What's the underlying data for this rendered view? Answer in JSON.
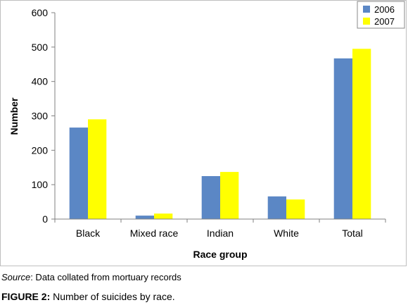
{
  "chart_data": {
    "type": "bar",
    "categories": [
      "Black",
      "Mixed race",
      "Indian",
      "White",
      "Total"
    ],
    "series": [
      {
        "name": "2006",
        "values": [
          266,
          10,
          125,
          66,
          467
        ],
        "color": "#5b87c5"
      },
      {
        "name": "2007",
        "values": [
          290,
          16,
          137,
          57,
          495
        ],
        "color": "#ffff00"
      }
    ],
    "xlabel": "Race group",
    "ylabel": "Number",
    "ylim": [
      0,
      600
    ],
    "yticks": [
      0,
      100,
      200,
      300,
      400,
      500,
      600
    ],
    "grid": false,
    "legend_position": "top-right"
  },
  "source": {
    "label": "Source",
    "text": ": Data collated from mortuary records"
  },
  "caption": {
    "label": "FIGURE 2:",
    "text": " Number of suicides by race."
  }
}
